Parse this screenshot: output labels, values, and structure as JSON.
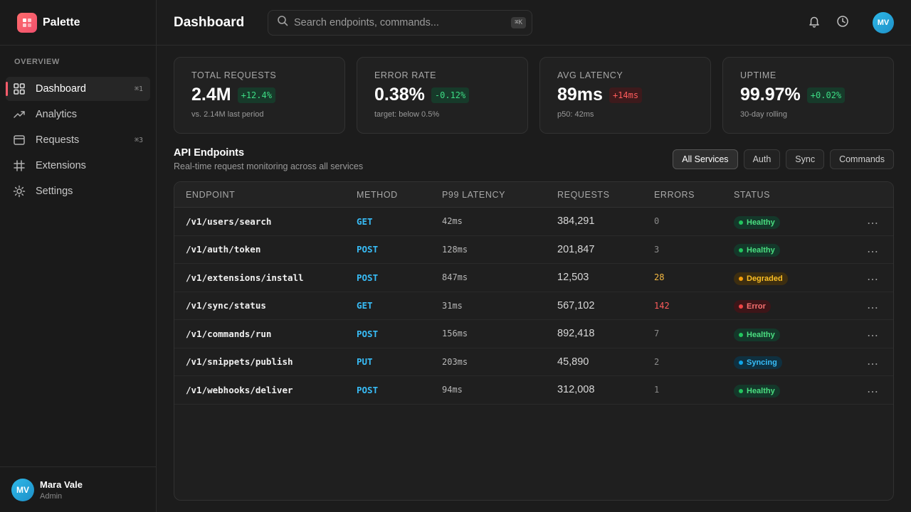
{
  "app": {
    "name": "Palette"
  },
  "sidebar": {
    "section_label": "OVERVIEW",
    "items": [
      {
        "label": "Dashboard",
        "icon": "grid-icon",
        "shortcut": "⌘1",
        "active": true
      },
      {
        "label": "Analytics",
        "icon": "trend-icon",
        "shortcut": ""
      },
      {
        "label": "Requests",
        "icon": "window-icon",
        "shortcut": "⌘3"
      },
      {
        "label": "Extensions",
        "icon": "hash-icon",
        "shortcut": ""
      },
      {
        "label": "Settings",
        "icon": "sun-gear-icon",
        "shortcut": ""
      }
    ],
    "user": {
      "initials": "MV",
      "name": "Mara Vale",
      "role": "Admin"
    }
  },
  "header": {
    "title": "Dashboard",
    "search_placeholder": "Search endpoints, commands...",
    "search_shortcut": "⌘K",
    "avatar_initials": "MV"
  },
  "stats": [
    {
      "label": "TOTAL REQUESTS",
      "value": "2.4M",
      "delta": "+12.4%",
      "delta_type": "pos",
      "sub": "vs. 2.14M last period"
    },
    {
      "label": "ERROR RATE",
      "value": "0.38%",
      "delta": "-0.12%",
      "delta_type": "pos",
      "sub": "target: below 0.5%"
    },
    {
      "label": "AVG LATENCY",
      "value": "89ms",
      "delta": "+14ms",
      "delta_type": "neg",
      "sub": "p50: 42ms"
    },
    {
      "label": "UPTIME",
      "value": "99.97%",
      "delta": "+0.02%",
      "delta_type": "pos",
      "sub": "30-day rolling"
    }
  ],
  "endpoints_section": {
    "title": "API Endpoints",
    "subtitle": "Real-time request monitoring across all services",
    "filters": [
      "All Services",
      "Auth",
      "Sync",
      "Commands"
    ],
    "active_filter": "All Services"
  },
  "table": {
    "columns": [
      "ENDPOINT",
      "METHOD",
      "P99 LATENCY",
      "REQUESTS",
      "ERRORS",
      "STATUS"
    ],
    "rows": [
      {
        "endpoint": "/v1/users/search",
        "method": "GET",
        "latency": "42ms",
        "requests": "384,291",
        "errors": "0",
        "error_level": "none",
        "status": "Healthy",
        "status_type": "healthy"
      },
      {
        "endpoint": "/v1/auth/token",
        "method": "POST",
        "latency": "128ms",
        "requests": "201,847",
        "errors": "3",
        "error_level": "none",
        "status": "Healthy",
        "status_type": "healthy"
      },
      {
        "endpoint": "/v1/extensions/install",
        "method": "POST",
        "latency": "847ms",
        "requests": "12,503",
        "errors": "28",
        "error_level": "warn",
        "status": "Degraded",
        "status_type": "degraded"
      },
      {
        "endpoint": "/v1/sync/status",
        "method": "GET",
        "latency": "31ms",
        "requests": "567,102",
        "errors": "142",
        "error_level": "bad",
        "status": "Error",
        "status_type": "error"
      },
      {
        "endpoint": "/v1/commands/run",
        "method": "POST",
        "latency": "156ms",
        "requests": "892,418",
        "errors": "7",
        "error_level": "none",
        "status": "Healthy",
        "status_type": "healthy"
      },
      {
        "endpoint": "/v1/snippets/publish",
        "method": "PUT",
        "latency": "203ms",
        "requests": "45,890",
        "errors": "2",
        "error_level": "none",
        "status": "Syncing",
        "status_type": "syncing"
      },
      {
        "endpoint": "/v1/webhooks/deliver",
        "method": "POST",
        "latency": "94ms",
        "requests": "312,008",
        "errors": "1",
        "error_level": "none",
        "status": "Healthy",
        "status_type": "healthy"
      }
    ]
  },
  "colors": {
    "accent": "#ff5c6c",
    "method": "#38bdf8",
    "positive": "#3ddc84",
    "negative": "#ff5c5c"
  }
}
